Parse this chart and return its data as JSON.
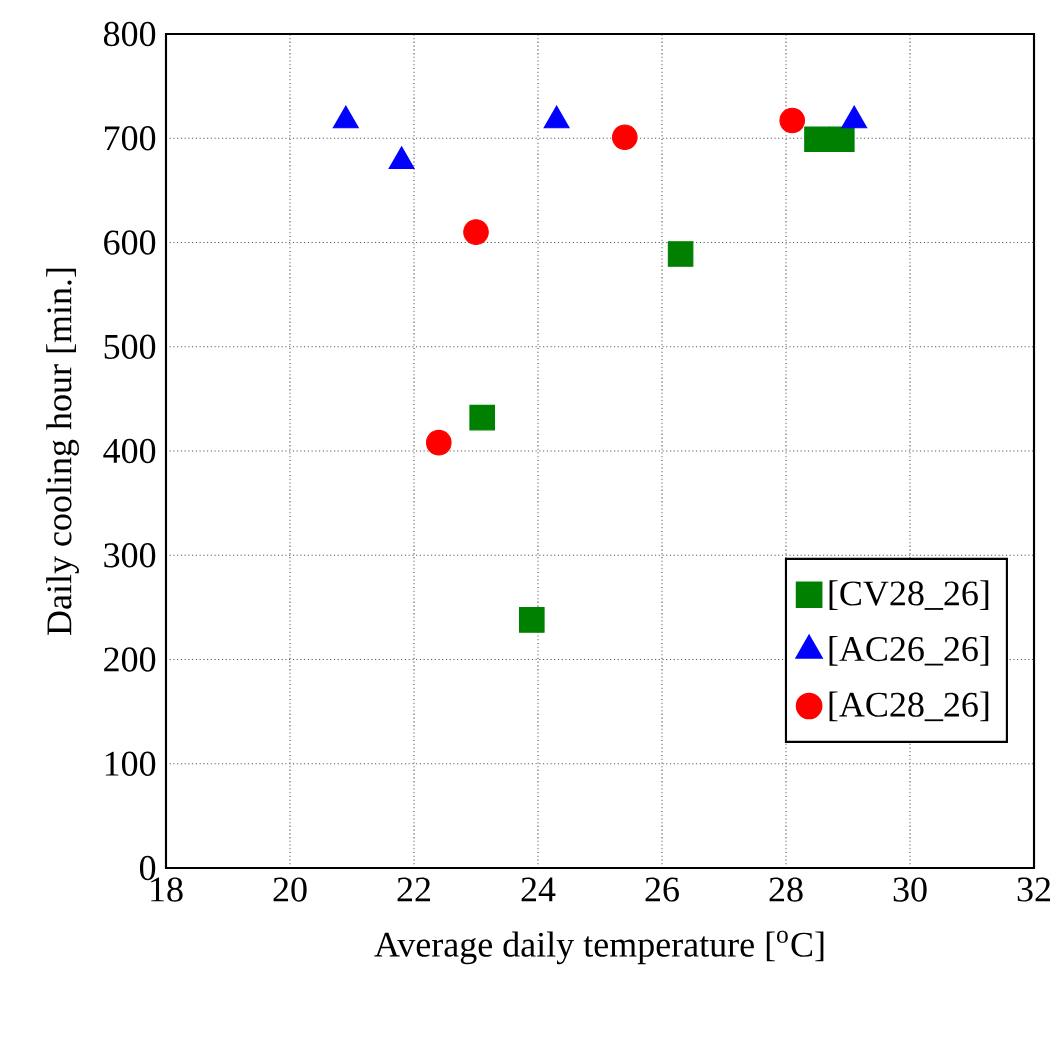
{
  "chart_data": {
    "type": "scatter",
    "xlabel": "Average daily temperature [$^{o}$C]",
    "ylabel": "Daily cooling hour [min.]",
    "xlim": [
      18,
      32
    ],
    "ylim": [
      0,
      800
    ],
    "xticks": [
      18,
      20,
      22,
      24,
      26,
      28,
      30,
      32
    ],
    "yticks": [
      0,
      100,
      200,
      300,
      400,
      500,
      600,
      700,
      800
    ],
    "grid": true,
    "legend": "bottom right",
    "series": [
      {
        "name": "[CV28_26]",
        "color": "#008000",
        "marker": "square",
        "x": [
          23.1,
          23.9,
          26.3,
          28.5,
          28.9
        ],
        "values": [
          432,
          238,
          589,
          699,
          699
        ]
      },
      {
        "name": "[AC26_26]",
        "color": "#0000ff",
        "marker": "triangle",
        "x": [
          20.9,
          21.8,
          24.3,
          29.1
        ],
        "values": [
          717,
          678,
          717,
          717
        ]
      },
      {
        "name": "[AC28_26]",
        "color": "#ff0000",
        "marker": "circle",
        "x": [
          22.4,
          23.0,
          25.4,
          28.1
        ],
        "values": [
          408,
          610,
          701,
          717
        ]
      }
    ]
  }
}
